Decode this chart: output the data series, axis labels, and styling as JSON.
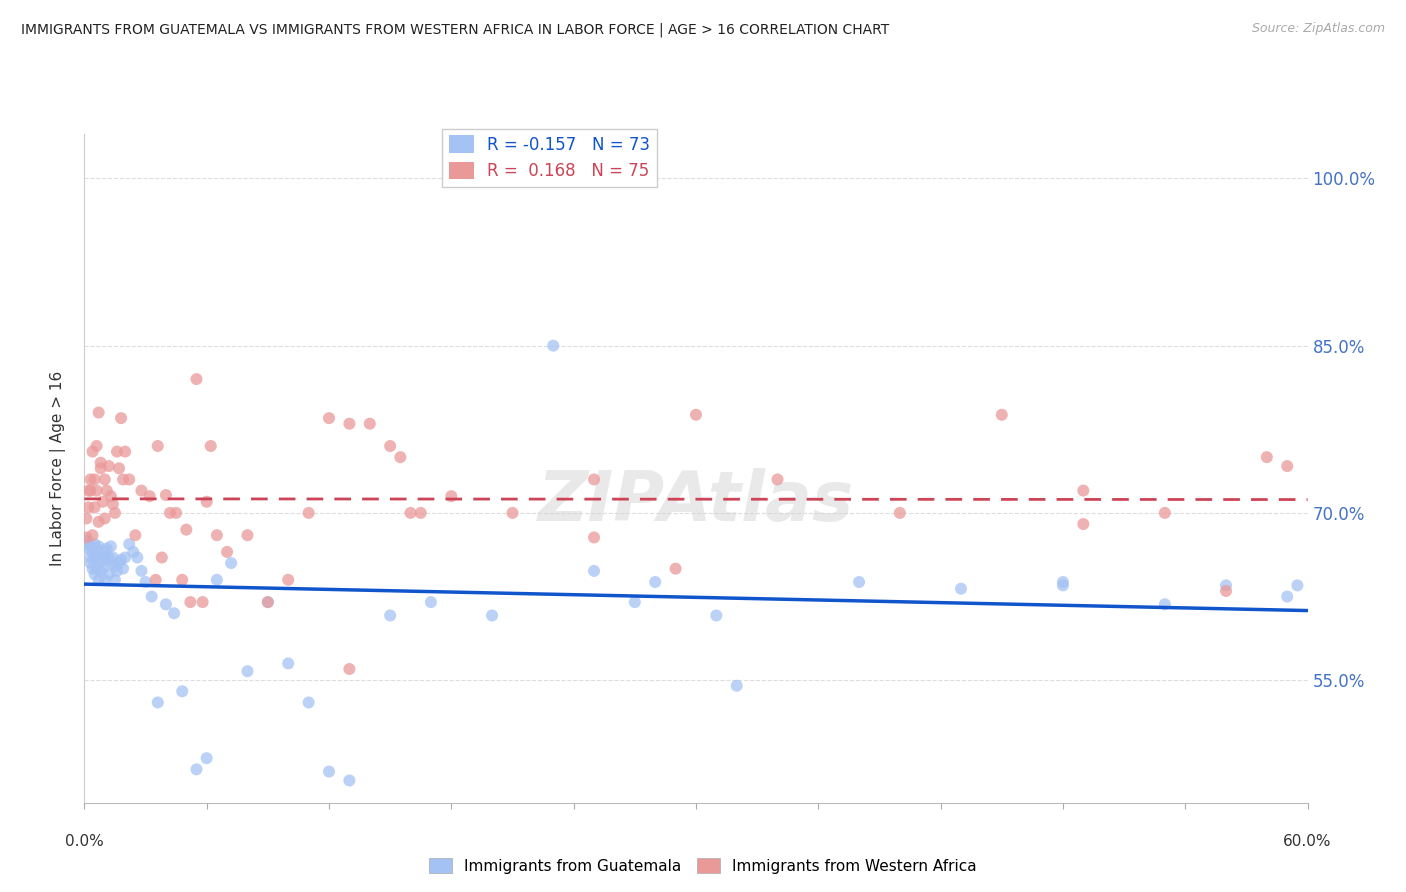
{
  "title": "IMMIGRANTS FROM GUATEMALA VS IMMIGRANTS FROM WESTERN AFRICA IN LABOR FORCE | AGE > 16 CORRELATION CHART",
  "source": "Source: ZipAtlas.com",
  "ylabel": "In Labor Force | Age > 16",
  "x_min": 0.0,
  "x_max": 0.6,
  "y_min": 0.44,
  "y_max": 1.04,
  "yticks": [
    0.55,
    0.7,
    0.85,
    1.0
  ],
  "ytick_labels": [
    "55.0%",
    "70.0%",
    "85.0%",
    "100.0%"
  ],
  "xtick_labels": [
    "0.0%",
    "60.0%"
  ],
  "bottom_legend": [
    "Immigrants from Guatemala",
    "Immigrants from Western Africa"
  ],
  "blue_color": "#a4c2f4",
  "pink_color": "#ea9999",
  "blue_line_color": "#1155cc",
  "pink_line_color": "#cc4455",
  "watermark": "ZIPAtlas",
  "legend_blue_R": "R = -0.157",
  "legend_blue_N": "N = 73",
  "legend_pink_R": "R =  0.168",
  "legend_pink_N": "N = 75",
  "blue_x": [
    0.001,
    0.002,
    0.002,
    0.003,
    0.003,
    0.003,
    0.004,
    0.004,
    0.005,
    0.005,
    0.005,
    0.006,
    0.006,
    0.007,
    0.007,
    0.007,
    0.008,
    0.008,
    0.009,
    0.009,
    0.01,
    0.01,
    0.011,
    0.011,
    0.012,
    0.012,
    0.013,
    0.013,
    0.014,
    0.015,
    0.015,
    0.016,
    0.017,
    0.018,
    0.019,
    0.02,
    0.022,
    0.024,
    0.026,
    0.028,
    0.03,
    0.033,
    0.036,
    0.04,
    0.044,
    0.048,
    0.055,
    0.06,
    0.065,
    0.072,
    0.08,
    0.09,
    0.1,
    0.11,
    0.12,
    0.13,
    0.15,
    0.17,
    0.2,
    0.23,
    0.27,
    0.32,
    0.38,
    0.43,
    0.48,
    0.53,
    0.56,
    0.59,
    0.595,
    0.25,
    0.28,
    0.31,
    0.48
  ],
  "blue_y": [
    0.675,
    0.672,
    0.668,
    0.67,
    0.66,
    0.655,
    0.665,
    0.65,
    0.672,
    0.66,
    0.645,
    0.668,
    0.65,
    0.67,
    0.655,
    0.64,
    0.658,
    0.648,
    0.662,
    0.65,
    0.665,
    0.64,
    0.668,
    0.658,
    0.66,
    0.645,
    0.67,
    0.655,
    0.66,
    0.652,
    0.64,
    0.648,
    0.655,
    0.658,
    0.65,
    0.66,
    0.672,
    0.665,
    0.66,
    0.648,
    0.638,
    0.625,
    0.53,
    0.618,
    0.61,
    0.54,
    0.47,
    0.48,
    0.64,
    0.655,
    0.558,
    0.62,
    0.565,
    0.53,
    0.468,
    0.46,
    0.608,
    0.62,
    0.608,
    0.85,
    0.62,
    0.545,
    0.638,
    0.632,
    0.638,
    0.618,
    0.635,
    0.625,
    0.635,
    0.648,
    0.638,
    0.608,
    0.635
  ],
  "pink_x": [
    0.001,
    0.001,
    0.002,
    0.002,
    0.003,
    0.003,
    0.004,
    0.004,
    0.005,
    0.005,
    0.006,
    0.006,
    0.007,
    0.007,
    0.008,
    0.008,
    0.009,
    0.01,
    0.01,
    0.011,
    0.012,
    0.013,
    0.014,
    0.015,
    0.016,
    0.017,
    0.018,
    0.019,
    0.02,
    0.022,
    0.025,
    0.028,
    0.032,
    0.036,
    0.04,
    0.045,
    0.05,
    0.055,
    0.06,
    0.065,
    0.07,
    0.08,
    0.09,
    0.1,
    0.11,
    0.12,
    0.13,
    0.14,
    0.16,
    0.18,
    0.21,
    0.25,
    0.29,
    0.34,
    0.4,
    0.45,
    0.49,
    0.53,
    0.56,
    0.58,
    0.59,
    0.13,
    0.15,
    0.035,
    0.038,
    0.042,
    0.048,
    0.052,
    0.058,
    0.062,
    0.155,
    0.165,
    0.25,
    0.3,
    0.49
  ],
  "pink_y": [
    0.678,
    0.695,
    0.72,
    0.705,
    0.73,
    0.72,
    0.755,
    0.68,
    0.73,
    0.705,
    0.72,
    0.76,
    0.79,
    0.692,
    0.745,
    0.74,
    0.71,
    0.73,
    0.695,
    0.72,
    0.742,
    0.715,
    0.708,
    0.7,
    0.755,
    0.74,
    0.785,
    0.73,
    0.755,
    0.73,
    0.68,
    0.72,
    0.715,
    0.76,
    0.716,
    0.7,
    0.685,
    0.82,
    0.71,
    0.68,
    0.665,
    0.68,
    0.62,
    0.64,
    0.7,
    0.785,
    0.56,
    0.78,
    0.7,
    0.715,
    0.7,
    0.678,
    0.65,
    0.73,
    0.7,
    0.788,
    0.69,
    0.7,
    0.63,
    0.75,
    0.742,
    0.78,
    0.76,
    0.64,
    0.66,
    0.7,
    0.64,
    0.62,
    0.62,
    0.76,
    0.75,
    0.7,
    0.73,
    0.788,
    0.72
  ]
}
